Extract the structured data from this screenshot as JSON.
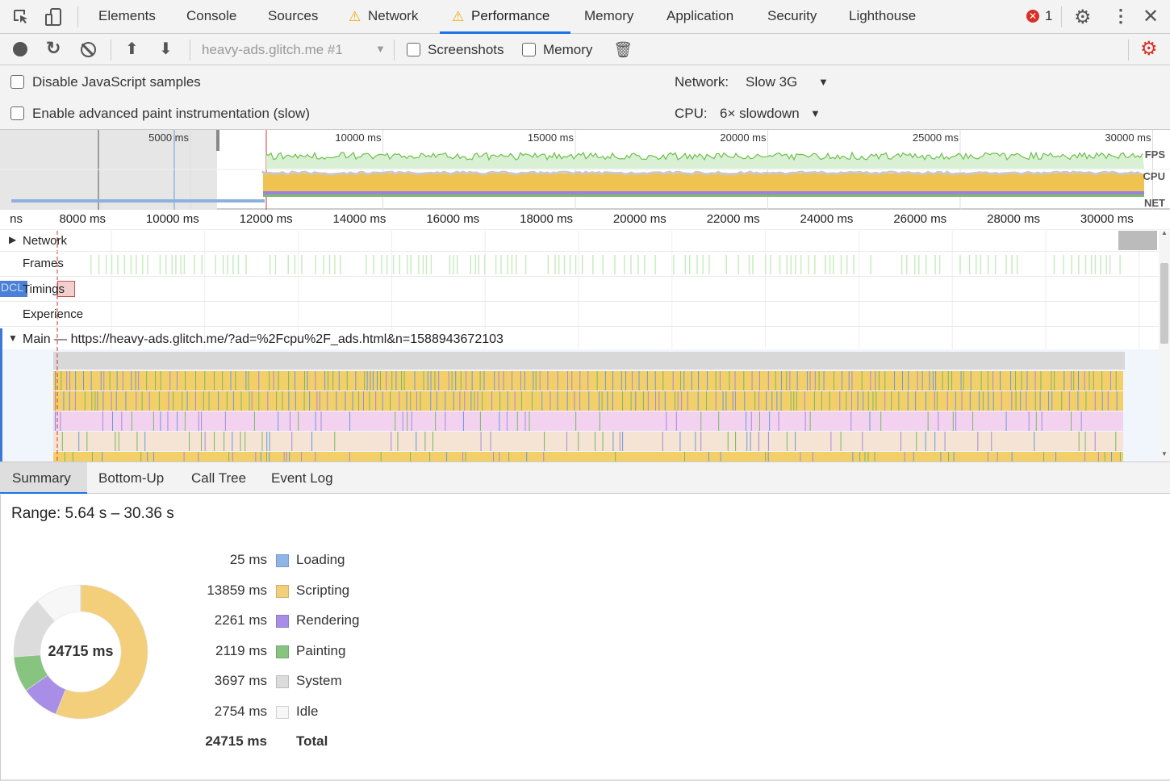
{
  "tabs": [
    {
      "label": "Elements",
      "warn": false
    },
    {
      "label": "Console",
      "warn": false
    },
    {
      "label": "Sources",
      "warn": false
    },
    {
      "label": "Network",
      "warn": true
    },
    {
      "label": "Performance",
      "warn": true,
      "active": true
    },
    {
      "label": "Memory",
      "warn": false
    },
    {
      "label": "Application",
      "warn": false
    },
    {
      "label": "Security",
      "warn": false
    },
    {
      "label": "Lighthouse",
      "warn": false
    }
  ],
  "error_count": "1",
  "toolbar": {
    "target": "heavy-ads.glitch.me #1",
    "screenshots": "Screenshots",
    "memory": "Memory"
  },
  "settings": {
    "disable_js": "Disable JavaScript samples",
    "paint": "Enable advanced paint instrumentation (slow)",
    "network_label": "Network:",
    "network_value": "Slow 3G",
    "cpu_label": "CPU:",
    "cpu_value": "6× slowdown"
  },
  "overview": {
    "ticks": [
      "5000 ms",
      "10000 ms",
      "15000 ms",
      "20000 ms",
      "25000 ms",
      "30000 ms"
    ],
    "fps": "FPS",
    "cpu": "CPU",
    "net": "NET"
  },
  "ruler": {
    "ticks": [
      "ns",
      "8000 ms",
      "10000 ms",
      "12000 ms",
      "14000 ms",
      "16000 ms",
      "18000 ms",
      "20000 ms",
      "22000 ms",
      "24000 ms",
      "26000 ms",
      "28000 ms",
      "30000 ms"
    ]
  },
  "tracks": {
    "network": "Network",
    "frames": "Frames",
    "timings": "Timings",
    "dcl": "DCL",
    "experience": "Experience",
    "main": "Main — https://heavy-ads.glitch.me/?ad=%2Fcpu%2F_ads.html&n=1588943672103"
  },
  "bottom_tabs": [
    "Summary",
    "Bottom-Up",
    "Call Tree",
    "Event Log"
  ],
  "summary": {
    "range": "Range: 5.64 s – 30.36 s",
    "total_center": "24715 ms",
    "items": [
      {
        "value": "25 ms",
        "name": "Loading",
        "ms": 25,
        "color": "#8fb4e8"
      },
      {
        "value": "13859 ms",
        "name": "Scripting",
        "ms": 13859,
        "color": "#f3cf7b"
      },
      {
        "value": "2261 ms",
        "name": "Rendering",
        "ms": 2261,
        "color": "#a98ee8"
      },
      {
        "value": "2119 ms",
        "name": "Painting",
        "ms": 2119,
        "color": "#87c480"
      },
      {
        "value": "3697 ms",
        "name": "System",
        "ms": 3697,
        "color": "#dcdcdc"
      },
      {
        "value": "2754 ms",
        "name": "Idle",
        "ms": 2754,
        "color": "#f7f7f7"
      }
    ],
    "total_value": "24715 ms",
    "total_label": "Total"
  }
}
